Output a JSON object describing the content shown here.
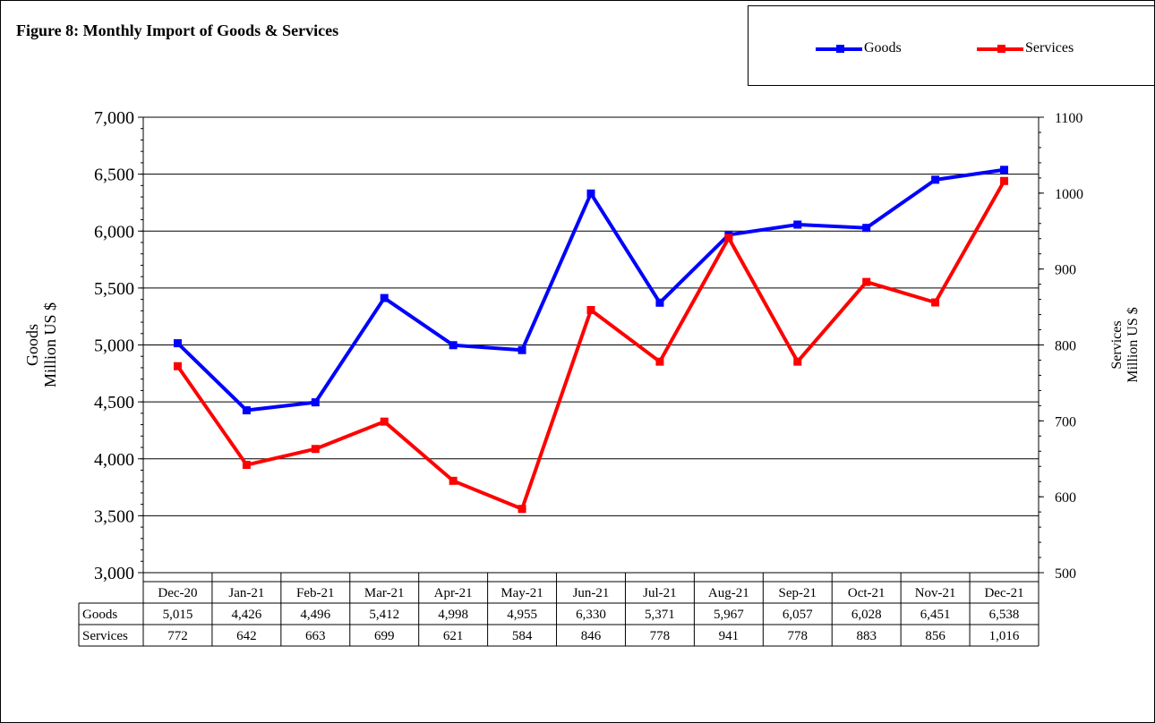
{
  "title": "Figure 8: Monthly Import of Goods & Services",
  "chart_data": {
    "type": "line",
    "title": "Figure 8: Monthly Import of Goods & Services",
    "categories": [
      "Dec-20",
      "Jan-21",
      "Feb-21",
      "Mar-21",
      "Apr-21",
      "May-21",
      "Jun-21",
      "Jul-21",
      "Aug-21",
      "Sep-21",
      "Oct-21",
      "Nov-21",
      "Dec-21"
    ],
    "series": [
      {
        "name": "Goods",
        "axis": "left",
        "color": "#0000FF",
        "values": [
          5015,
          4426,
          4496,
          5412,
          4998,
          4955,
          6330,
          5371,
          5967,
          6057,
          6028,
          6451,
          6538
        ]
      },
      {
        "name": "Services",
        "axis": "right",
        "color": "#FF0000",
        "values": [
          772,
          642,
          663,
          699,
          621,
          584,
          846,
          778,
          941,
          778,
          883,
          856,
          1016
        ]
      }
    ],
    "y_left": {
      "label_line1": "Goods",
      "label_line2": "Million US $",
      "ylim": [
        3000,
        7000
      ],
      "ticks": [
        "3,000",
        "3,500",
        "4,000",
        "4,500",
        "5,000",
        "5,500",
        "6,000",
        "6,500",
        "7,000"
      ]
    },
    "y_right": {
      "label_line1": "Services",
      "label_line2": "Million US $",
      "ylim": [
        500,
        1100
      ],
      "ticks": [
        "500",
        "600",
        "700",
        "800",
        "900",
        "1000",
        "1100"
      ]
    },
    "grid": true,
    "legend_position": "top-right",
    "table": {
      "row_labels": [
        "Goods",
        "Services"
      ],
      "goods": [
        "5,015",
        "4,426",
        "4,496",
        "5,412",
        "4,998",
        "4,955",
        "6,330",
        "5,371",
        "5,967",
        "6,057",
        "6,028",
        "6,451",
        "6,538"
      ],
      "services": [
        "772",
        "642",
        "663",
        "699",
        "621",
        "584",
        "846",
        "778",
        "941",
        "778",
        "883",
        "856",
        "1,016"
      ]
    }
  }
}
